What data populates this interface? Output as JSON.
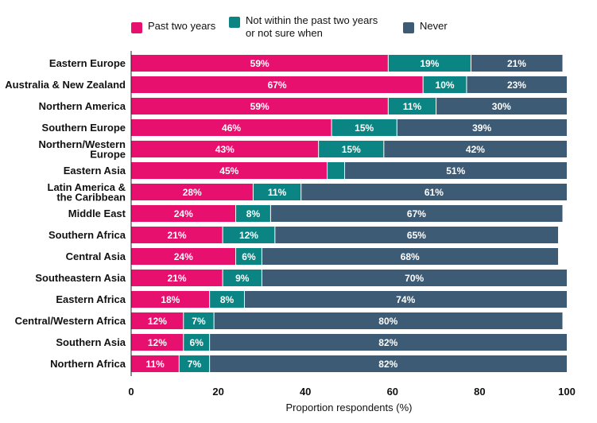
{
  "chart_data": {
    "type": "bar",
    "orientation": "horizontal",
    "stacked": true,
    "categories": [
      "Eastern Europe",
      "Australia & New Zealand",
      "Northern America",
      "Southern Europe",
      "Northern/Western Europe",
      "Eastern Asia",
      "Latin America & the Caribbean",
      "Middle East",
      "Southern Africa",
      "Central Asia",
      "Southeastern Asia",
      "Eastern Africa",
      "Central/Western Africa",
      "Southern Asia",
      "Northern Africa"
    ],
    "category_lines": [
      [
        "Eastern Europe"
      ],
      [
        "Australia & New Zealand"
      ],
      [
        "Northern America"
      ],
      [
        "Southern Europe"
      ],
      [
        "Northern/Western",
        "Europe"
      ],
      [
        "Eastern Asia"
      ],
      [
        "Latin America &",
        "the Caribbean"
      ],
      [
        "Middle East"
      ],
      [
        "Southern Africa"
      ],
      [
        "Central Asia"
      ],
      [
        "Southeastern Asia"
      ],
      [
        "Eastern Africa"
      ],
      [
        "Central/Western Africa"
      ],
      [
        "Southern Asia"
      ],
      [
        "Northern Africa"
      ]
    ],
    "series": [
      {
        "name": "Past two years",
        "legend_lines": [
          "Past two years"
        ],
        "color": "#E8106E",
        "values": [
          59,
          67,
          59,
          46,
          43,
          45,
          28,
          24,
          21,
          24,
          21,
          18,
          12,
          12,
          11
        ],
        "labels": [
          "59%",
          "67%",
          "59%",
          "46%",
          "43%",
          "45%",
          "28%",
          "24%",
          "21%",
          "24%",
          "21%",
          "18%",
          "12%",
          "12%",
          "11%"
        ]
      },
      {
        "name": "Not within the past two years or not sure when",
        "legend_lines": [
          "Not within the past two years",
          "or not sure when"
        ],
        "color": "#0B8583",
        "values": [
          19,
          10,
          11,
          15,
          15,
          4,
          11,
          8,
          12,
          6,
          9,
          8,
          7,
          6,
          7
        ],
        "labels": [
          "19%",
          "10%",
          "11%",
          "15%",
          "15%",
          "",
          "11%",
          "8%",
          "12%",
          "6%",
          "9%",
          "8%",
          "7%",
          "6%",
          "7%"
        ]
      },
      {
        "name": "Never",
        "legend_lines": [
          "Never"
        ],
        "color": "#3E5B75",
        "values": [
          21,
          23,
          30,
          39,
          42,
          51,
          61,
          67,
          65,
          68,
          70,
          74,
          80,
          82,
          82
        ],
        "labels": [
          "21%",
          "23%",
          "30%",
          "39%",
          "42%",
          "51%",
          "61%",
          "67%",
          "65%",
          "68%",
          "70%",
          "74%",
          "80%",
          "82%",
          "82%"
        ]
      }
    ],
    "xlabel": "Proportion respondents (%)",
    "ylabel": "",
    "xlim": [
      0,
      100
    ],
    "xticks": [
      "0",
      "20",
      "40",
      "60",
      "80",
      "100"
    ],
    "legend_position": "top",
    "grid": false
  }
}
